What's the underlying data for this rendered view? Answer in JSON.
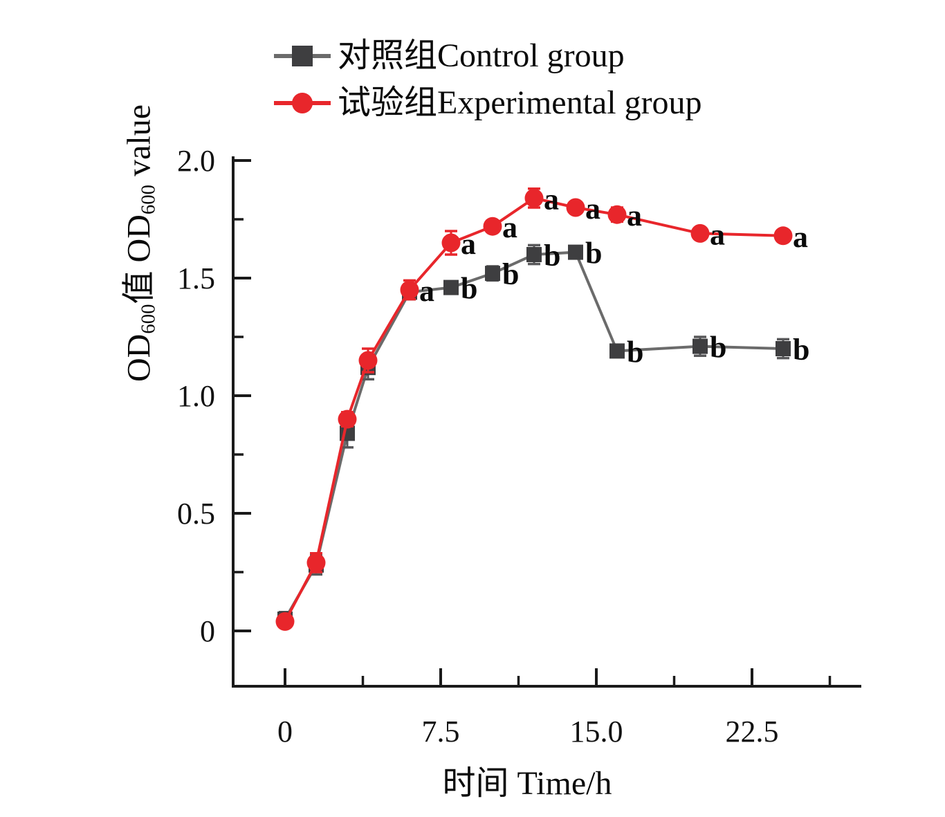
{
  "figure": {
    "background_color": "#ffffff",
    "text_color": "#0a0a0a",
    "axis_color": "#1a1a1a"
  },
  "legend": {
    "position": "top-center",
    "items": [
      {
        "label": "对照组Control group",
        "marker": "square",
        "marker_color": "#3e3e40",
        "line_color": "#6b6b6b"
      },
      {
        "label": "试验组Experimental group",
        "marker": "circle",
        "marker_color": "#e8262b",
        "line_color": "#e8262b"
      }
    ]
  },
  "chart_data": {
    "type": "line",
    "title": "",
    "xlabel": "时间  Time/h",
    "ylabel": "OD600值 OD600 value",
    "ylabel_parts": [
      {
        "text": "OD",
        "sub": false
      },
      {
        "text": "600",
        "sub": true
      },
      {
        "text": "值 OD",
        "sub": false
      },
      {
        "text": "600",
        "sub": true
      },
      {
        "text": " value",
        "sub": false
      }
    ],
    "x": [
      0,
      1.5,
      3,
      4,
      6,
      8,
      10,
      12,
      14,
      16,
      20,
      24
    ],
    "series": [
      {
        "id": "control",
        "name": "对照组Control group",
        "marker": "square",
        "color": "#3e3e40",
        "line_color": "#6b6b6b",
        "values": [
          0.05,
          0.28,
          0.84,
          1.12,
          1.44,
          1.46,
          1.52,
          1.6,
          1.61,
          1.19,
          1.21,
          1.2
        ],
        "errors": [
          0.03,
          0.04,
          0.06,
          0.05,
          0.03,
          0.02,
          0.03,
          0.04,
          0.02,
          0.02,
          0.04,
          0.04
        ],
        "point_labels": [
          "",
          "",
          "",
          "",
          "",
          "b",
          "b",
          "b",
          "b",
          "b",
          "b",
          "b"
        ]
      },
      {
        "id": "experimental",
        "name": "试验组Experimental group",
        "marker": "circle",
        "color": "#e8262b",
        "line_color": "#e8262b",
        "values": [
          0.04,
          0.29,
          0.9,
          1.15,
          1.45,
          1.65,
          1.72,
          1.84,
          1.8,
          1.77,
          1.69,
          1.68
        ],
        "errors": [
          0.02,
          0.04,
          0.03,
          0.05,
          0.04,
          0.05,
          0.02,
          0.04,
          0.02,
          0.03,
          0.02,
          0.02
        ],
        "point_labels": [
          "",
          "",
          "",
          "",
          "a",
          "a",
          "a",
          "a",
          "a",
          "a",
          "a",
          "a"
        ]
      }
    ],
    "x_ticks": [
      0,
      7.5,
      15.0,
      22.5
    ],
    "x_tick_labels": [
      "0",
      "7.5",
      "15.0",
      "22.5"
    ],
    "x_minor_ticks": [
      3.75,
      11.25,
      18.75,
      26.25
    ],
    "y_ticks": [
      0,
      0.5,
      1.0,
      1.5,
      2.0
    ],
    "y_tick_labels": [
      "0",
      "0.5",
      "1.0",
      "1.5",
      "2.0"
    ],
    "y_minor_ticks": [
      0.25,
      0.75,
      1.25,
      1.75
    ],
    "xlim": [
      -2.5,
      27.8
    ],
    "ylim": [
      -0.24,
      2.0
    ],
    "grid": false,
    "legend_position": "top"
  }
}
